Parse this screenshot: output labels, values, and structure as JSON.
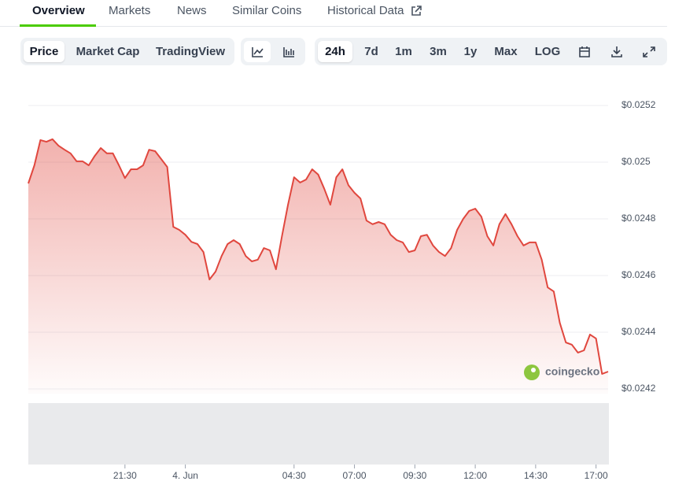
{
  "tabs": [
    "Overview",
    "Markets",
    "News",
    "Similar Coins",
    "Historical Data"
  ],
  "chart_modes": [
    "Price",
    "Market Cap",
    "TradingView"
  ],
  "ranges": [
    "24h",
    "7d",
    "1m",
    "3m",
    "1y",
    "Max",
    "LOG"
  ],
  "watermark": "coingecko",
  "chart_data": {
    "type": "line",
    "categories": [
      null,
      null,
      null,
      null,
      null,
      null,
      null,
      null,
      null,
      null,
      null,
      null,
      null,
      null,
      null,
      null,
      "21:30",
      null,
      null,
      null,
      null,
      null,
      null,
      null,
      null,
      null,
      "4. Jun",
      null,
      null,
      null,
      null,
      null,
      null,
      null,
      null,
      null,
      null,
      null,
      null,
      null,
      null,
      null,
      null,
      null,
      "04:30",
      null,
      null,
      null,
      null,
      null,
      null,
      null,
      null,
      null,
      "07:00",
      null,
      null,
      null,
      null,
      null,
      null,
      null,
      null,
      null,
      "09:30",
      null,
      null,
      null,
      null,
      null,
      null,
      null,
      null,
      null,
      "12:00",
      null,
      null,
      null,
      null,
      null,
      null,
      null,
      null,
      null,
      "14:30",
      null,
      null,
      null,
      null,
      null,
      null,
      null,
      null,
      null,
      "17:00",
      null,
      null
    ],
    "series": [
      {
        "color": "#e0473e",
        "values": [
          0.024925,
          0.024989,
          0.025078,
          0.025072,
          0.025081,
          0.025058,
          0.025044,
          0.025031,
          0.025003,
          0.025003,
          0.024989,
          0.025022,
          0.02505,
          0.025031,
          0.025031,
          0.024989,
          0.024944,
          0.024975,
          0.024975,
          0.024989,
          0.025044,
          0.025039,
          0.025011,
          0.024983,
          0.024772,
          0.024761,
          0.024744,
          0.024719,
          0.024711,
          0.024683,
          0.024586,
          0.024614,
          0.024669,
          0.024711,
          0.024725,
          0.024711,
          0.024669,
          0.02465,
          0.024656,
          0.024697,
          0.024689,
          0.024622,
          0.024739,
          0.02485,
          0.024947,
          0.024928,
          0.024939,
          0.024975,
          0.024956,
          0.024906,
          0.02485,
          0.024947,
          0.024975,
          0.024919,
          0.024892,
          0.024872,
          0.024794,
          0.024781,
          0.024789,
          0.024781,
          0.024744,
          0.024725,
          0.024717,
          0.024683,
          0.024689,
          0.024739,
          0.024744,
          0.024706,
          0.024683,
          0.024669,
          0.024697,
          0.024761,
          0.0248,
          0.024828,
          0.024836,
          0.024808,
          0.024739,
          0.024706,
          0.024781,
          0.024817,
          0.024781,
          0.024739,
          0.024706,
          0.024717,
          0.024717,
          0.024656,
          0.024558,
          0.024544,
          0.024433,
          0.024364,
          0.024356,
          0.024328,
          0.024336,
          0.024392,
          0.024378,
          0.024253,
          0.024261
        ]
      }
    ],
    "ylim": [
      0.0242,
      0.0253
    ],
    "yticks": [
      {
        "value": 0.0242,
        "label": "$0.0242"
      },
      {
        "value": 0.0244,
        "label": "$0.0244"
      },
      {
        "value": 0.0246,
        "label": "$0.0246"
      },
      {
        "value": 0.0248,
        "label": "$0.0248"
      },
      {
        "value": 0.025,
        "label": "$0.025"
      },
      {
        "value": 0.0252,
        "label": "$0.0252"
      }
    ],
    "grid": true
  }
}
